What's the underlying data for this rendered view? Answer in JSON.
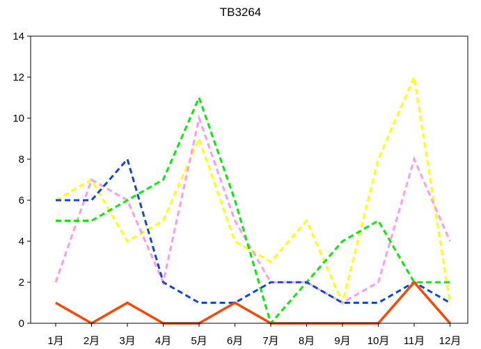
{
  "chart_data": {
    "type": "line",
    "title": "TB3264",
    "xlabel": "",
    "ylabel": "",
    "categories": [
      "1月",
      "2月",
      "3月",
      "4月",
      "5月",
      "6月",
      "7月",
      "8月",
      "9月",
      "10月",
      "11月",
      "12月"
    ],
    "ylim": [
      0,
      14
    ],
    "yticks": [
      0,
      2,
      4,
      6,
      8,
      10,
      12,
      14
    ],
    "grid": false,
    "legend": "none",
    "series": [
      {
        "color": "#ffff00",
        "style": "dashed",
        "values": [
          6,
          7,
          4,
          5,
          9,
          4,
          3,
          5,
          1,
          8,
          12,
          1
        ]
      },
      {
        "color": "#ff99ee",
        "style": "dashed",
        "values": [
          2,
          7,
          6,
          2,
          10,
          5,
          2,
          2,
          1,
          2,
          8,
          4
        ]
      },
      {
        "color": "#00ee00",
        "style": "dashed",
        "values": [
          5,
          5,
          6,
          7,
          11,
          6,
          0,
          2,
          4,
          5,
          2,
          2
        ]
      },
      {
        "color": "#1144dd",
        "style": "dashed",
        "values": [
          6,
          6,
          8,
          2,
          1,
          1,
          2,
          2,
          1,
          1,
          2,
          1
        ]
      },
      {
        "color": "#ff4400",
        "style": "solid",
        "values": [
          1,
          0,
          1,
          0,
          0,
          1,
          0,
          0,
          0,
          0,
          2,
          0
        ]
      }
    ]
  }
}
